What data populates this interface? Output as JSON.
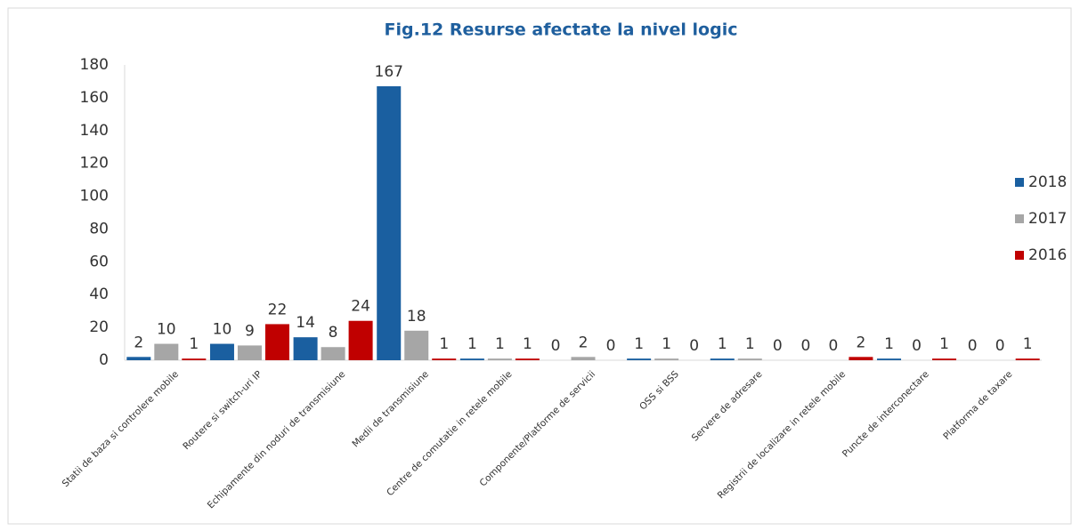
{
  "chart_data": {
    "type": "bar",
    "title": "Fig.12 Resurse afectate la nivel logic",
    "categories": [
      "Statii de baza si controlere mobile",
      "Routere si switch-uri IP",
      "Echipamente din noduri de transmisiune",
      "Medii de transmisiune",
      "Centre de comutatie in retele mobile",
      "Componente/Platforme de servicii",
      "OSS si BSS",
      "Servere de adresare",
      "Registrii de localizare in retele mobile",
      "Puncte de interconectare",
      "Platforma de taxare"
    ],
    "series": [
      {
        "name": "2018",
        "color": "#1a5fa0",
        "values": [
          2,
          10,
          14,
          167,
          1,
          0,
          1,
          1,
          0,
          1,
          0
        ]
      },
      {
        "name": "2017",
        "color": "#a6a6a6",
        "values": [
          10,
          9,
          8,
          18,
          1,
          2,
          1,
          1,
          0,
          0,
          0
        ]
      },
      {
        "name": "2016",
        "color": "#c00000",
        "values": [
          1,
          22,
          24,
          1,
          1,
          0,
          0,
          0,
          2,
          1,
          1
        ]
      }
    ],
    "ylim": [
      0,
      180
    ],
    "yticks": [
      0,
      20,
      40,
      60,
      80,
      100,
      120,
      140,
      160,
      180
    ],
    "grid": false,
    "legend": "right"
  }
}
